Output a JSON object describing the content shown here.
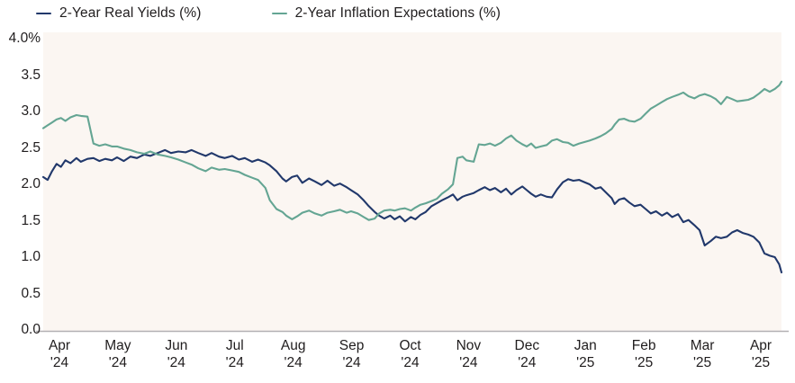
{
  "chart_data": {
    "type": "line",
    "title": "",
    "legend_position": "top",
    "grid": false,
    "ylabel": "",
    "xlabel": "",
    "ylim": [
      0.0,
      4.0
    ],
    "y_ticks": [
      {
        "label": "4.0%",
        "value": 4.0
      },
      {
        "label": "3.5",
        "value": 3.5
      },
      {
        "label": "3.0",
        "value": 3.0
      },
      {
        "label": "2.5",
        "value": 2.5
      },
      {
        "label": "2.0",
        "value": 2.0
      },
      {
        "label": "1.5",
        "value": 1.5
      },
      {
        "label": "1.0",
        "value": 1.0
      },
      {
        "label": "0.5",
        "value": 0.5
      },
      {
        "label": "0.0",
        "value": 0.0
      }
    ],
    "x_ticks": [
      {
        "month": "Apr",
        "year": "'24"
      },
      {
        "month": "May",
        "year": "'24"
      },
      {
        "month": "Jun",
        "year": "'24"
      },
      {
        "month": "Jul",
        "year": "'24"
      },
      {
        "month": "Aug",
        "year": "'24"
      },
      {
        "month": "Sep",
        "year": "'24"
      },
      {
        "month": "Oct",
        "year": "'24"
      },
      {
        "month": "Nov",
        "year": "'24"
      },
      {
        "month": "Dec",
        "year": "'24"
      },
      {
        "month": "Jan",
        "year": "'25"
      },
      {
        "month": "Feb",
        "year": "'25"
      },
      {
        "month": "Mar",
        "year": "'25"
      },
      {
        "month": "Apr",
        "year": "'25"
      }
    ],
    "colors": {
      "real_yields": "#21386b",
      "inflation_expectations": "#64a593",
      "axis": "#b3b0b3",
      "plot_bg": "#fbf6f2",
      "page_bg": "#ffffff",
      "text": "#201d1e"
    },
    "t": [
      0.0,
      0.006,
      0.012,
      0.018,
      0.024,
      0.03,
      0.037,
      0.045,
      0.051,
      0.06,
      0.068,
      0.076,
      0.084,
      0.093,
      0.1,
      0.109,
      0.118,
      0.127,
      0.137,
      0.145,
      0.155,
      0.165,
      0.173,
      0.183,
      0.193,
      0.201,
      0.21,
      0.22,
      0.228,
      0.238,
      0.246,
      0.256,
      0.265,
      0.273,
      0.283,
      0.291,
      0.301,
      0.307,
      0.316,
      0.324,
      0.329,
      0.337,
      0.344,
      0.351,
      0.36,
      0.368,
      0.377,
      0.385,
      0.394,
      0.402,
      0.411,
      0.417,
      0.426,
      0.434,
      0.441,
      0.449,
      0.455,
      0.462,
      0.47,
      0.476,
      0.483,
      0.49,
      0.498,
      0.504,
      0.511,
      0.518,
      0.526,
      0.533,
      0.54,
      0.548,
      0.555,
      0.561,
      0.568,
      0.573,
      0.583,
      0.59,
      0.598,
      0.605,
      0.612,
      0.62,
      0.627,
      0.634,
      0.641,
      0.649,
      0.655,
      0.661,
      0.667,
      0.674,
      0.682,
      0.689,
      0.696,
      0.704,
      0.711,
      0.718,
      0.726,
      0.733,
      0.74,
      0.748,
      0.755,
      0.762,
      0.77,
      0.774,
      0.78,
      0.787,
      0.794,
      0.801,
      0.809,
      0.816,
      0.823,
      0.83,
      0.838,
      0.845,
      0.852,
      0.86,
      0.867,
      0.874,
      0.882,
      0.889,
      0.896,
      0.904,
      0.911,
      0.918,
      0.926,
      0.933,
      0.94,
      0.948,
      0.955,
      0.962,
      0.97,
      0.977,
      0.984,
      0.991,
      0.997,
      1.0
    ],
    "series": [
      {
        "id": "real-yields",
        "name": "2-Year Real Yields (%)",
        "color": "#21386b",
        "values": [
          2.1,
          2.06,
          2.18,
          2.28,
          2.24,
          2.33,
          2.29,
          2.36,
          2.31,
          2.35,
          2.36,
          2.32,
          2.35,
          2.33,
          2.37,
          2.32,
          2.38,
          2.36,
          2.41,
          2.39,
          2.43,
          2.47,
          2.43,
          2.45,
          2.44,
          2.47,
          2.43,
          2.39,
          2.43,
          2.38,
          2.36,
          2.39,
          2.34,
          2.36,
          2.31,
          2.34,
          2.3,
          2.26,
          2.18,
          2.08,
          2.04,
          2.1,
          2.12,
          2.02,
          2.08,
          2.04,
          1.99,
          2.05,
          1.98,
          2.01,
          1.96,
          1.92,
          1.86,
          1.78,
          1.7,
          1.62,
          1.57,
          1.53,
          1.57,
          1.52,
          1.56,
          1.49,
          1.55,
          1.52,
          1.58,
          1.62,
          1.7,
          1.74,
          1.78,
          1.82,
          1.86,
          1.78,
          1.83,
          1.85,
          1.88,
          1.92,
          1.96,
          1.92,
          1.95,
          1.89,
          1.94,
          1.86,
          1.92,
          1.97,
          1.92,
          1.87,
          1.83,
          1.86,
          1.83,
          1.82,
          1.93,
          2.03,
          2.07,
          2.05,
          2.06,
          2.03,
          2.0,
          1.94,
          1.96,
          1.89,
          1.81,
          1.73,
          1.79,
          1.81,
          1.75,
          1.7,
          1.72,
          1.66,
          1.6,
          1.63,
          1.57,
          1.61,
          1.55,
          1.59,
          1.48,
          1.51,
          1.44,
          1.37,
          1.16,
          1.22,
          1.28,
          1.26,
          1.28,
          1.34,
          1.37,
          1.33,
          1.31,
          1.28,
          1.2,
          1.05,
          1.02,
          1.0,
          0.9,
          0.79
        ]
      },
      {
        "id": "inflation-expectations",
        "name": "2-Year Inflation Expectations (%)",
        "color": "#64a593",
        "values": [
          2.77,
          2.81,
          2.85,
          2.89,
          2.91,
          2.87,
          2.92,
          2.95,
          2.94,
          2.93,
          2.56,
          2.53,
          2.55,
          2.52,
          2.52,
          2.49,
          2.47,
          2.44,
          2.42,
          2.45,
          2.41,
          2.39,
          2.37,
          2.34,
          2.3,
          2.27,
          2.22,
          2.18,
          2.23,
          2.2,
          2.21,
          2.19,
          2.17,
          2.13,
          2.09,
          2.06,
          1.95,
          1.78,
          1.66,
          1.62,
          1.57,
          1.52,
          1.56,
          1.61,
          1.64,
          1.6,
          1.57,
          1.61,
          1.63,
          1.65,
          1.61,
          1.63,
          1.6,
          1.55,
          1.51,
          1.53,
          1.6,
          1.64,
          1.65,
          1.64,
          1.66,
          1.67,
          1.64,
          1.68,
          1.72,
          1.74,
          1.77,
          1.8,
          1.87,
          1.93,
          2.0,
          2.36,
          2.38,
          2.33,
          2.31,
          2.55,
          2.54,
          2.56,
          2.53,
          2.57,
          2.63,
          2.67,
          2.6,
          2.55,
          2.52,
          2.56,
          2.5,
          2.52,
          2.54,
          2.6,
          2.62,
          2.58,
          2.57,
          2.53,
          2.56,
          2.58,
          2.6,
          2.63,
          2.66,
          2.7,
          2.76,
          2.82,
          2.89,
          2.9,
          2.87,
          2.86,
          2.9,
          2.97,
          3.04,
          3.08,
          3.13,
          3.17,
          3.2,
          3.23,
          3.26,
          3.21,
          3.18,
          3.22,
          3.24,
          3.21,
          3.17,
          3.1,
          3.2,
          3.17,
          3.14,
          3.15,
          3.16,
          3.19,
          3.25,
          3.31,
          3.27,
          3.31,
          3.36,
          3.41
        ]
      }
    ]
  }
}
